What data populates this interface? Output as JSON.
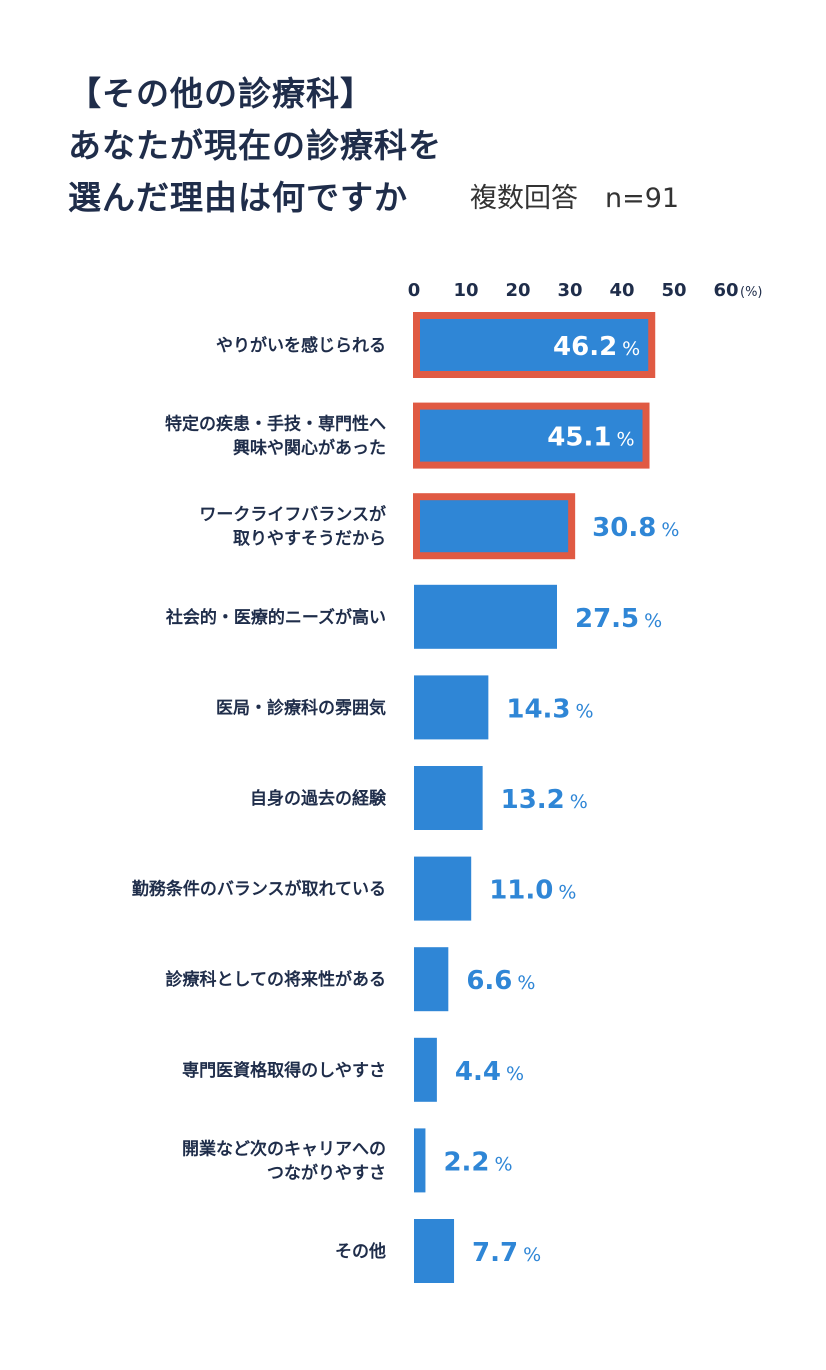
{
  "title_lines": [
    "【その他の診療科】",
    "あなたが現在の診療科を",
    "選んだ理由は何ですか"
  ],
  "subtitle": "複数回答　n=91",
  "colors": {
    "bar": "#2f86d6",
    "highlight": "#e05a43",
    "text": "#1f2d4a",
    "value_outside": "#2f86d6",
    "value_inside": "#ffffff"
  },
  "chart_data": {
    "type": "bar",
    "orientation": "horizontal",
    "unit_label": "(%)",
    "percent_sign": "%",
    "xlim": [
      0,
      60
    ],
    "ticks": [
      0,
      10,
      20,
      30,
      40,
      50,
      60
    ],
    "categories": [
      [
        "やりがいを感じられる"
      ],
      [
        "特定の疾患・手技・専門性へ",
        "興味や関心があった"
      ],
      [
        "ワークライフバランスが",
        "取りやすそうだから"
      ],
      [
        "社会的・医療的ニーズが高い"
      ],
      [
        "医局・診療科の雰囲気"
      ],
      [
        "自身の過去の経験"
      ],
      [
        "勤務条件のバランスが取れている"
      ],
      [
        "診療科としての将来性がある"
      ],
      [
        "専門医資格取得のしやすさ"
      ],
      [
        "開業など次のキャリアへの",
        "つながりやすさ"
      ],
      [
        "その他"
      ]
    ],
    "values": [
      46.2,
      45.1,
      30.8,
      27.5,
      14.3,
      13.2,
      11.0,
      6.6,
      4.4,
      2.2,
      7.7
    ],
    "value_labels": [
      "46.2",
      "45.1",
      "30.8",
      "27.5",
      "14.3",
      "13.2",
      "11.0",
      "6.6",
      "4.4",
      "2.2",
      "7.7"
    ],
    "highlighted": [
      true,
      true,
      true,
      false,
      false,
      false,
      false,
      false,
      false,
      false,
      false
    ]
  }
}
